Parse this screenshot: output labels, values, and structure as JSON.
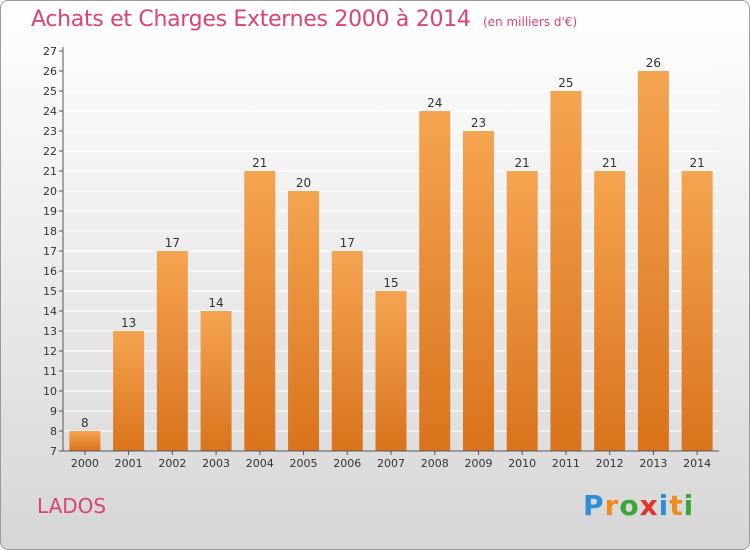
{
  "chart_data": {
    "type": "bar",
    "title": "Achats et Charges Externes 2000 à 2014",
    "subtitle": "(en milliers d'€)",
    "xlabel": "",
    "ylabel": "",
    "categories": [
      "2000",
      "2001",
      "2002",
      "2003",
      "2004",
      "2005",
      "2006",
      "2007",
      "2008",
      "2009",
      "2010",
      "2011",
      "2012",
      "2013",
      "2014"
    ],
    "values": [
      8,
      13,
      17,
      14,
      21,
      20,
      17,
      15,
      24,
      23,
      21,
      25,
      21,
      26,
      21
    ],
    "ylim": [
      7,
      27
    ],
    "yticks": [
      7,
      8,
      9,
      10,
      11,
      12,
      13,
      14,
      15,
      16,
      17,
      18,
      19,
      20,
      21,
      22,
      23,
      24,
      25,
      26,
      27
    ],
    "grid": true,
    "colors": {
      "bar_top": "#f5a450",
      "bar_bottom": "#d9731c",
      "title": "#d9427a"
    }
  },
  "commune": "LADOS",
  "logo": {
    "letters": [
      "P",
      "r",
      "o",
      "x",
      "i",
      "t",
      "i"
    ],
    "colors": [
      "#2f8fd6",
      "#f08a1c",
      "#3aa63a",
      "#e0322f",
      "#2f8fd6",
      "#f08a1c",
      "#3aa63a"
    ]
  }
}
